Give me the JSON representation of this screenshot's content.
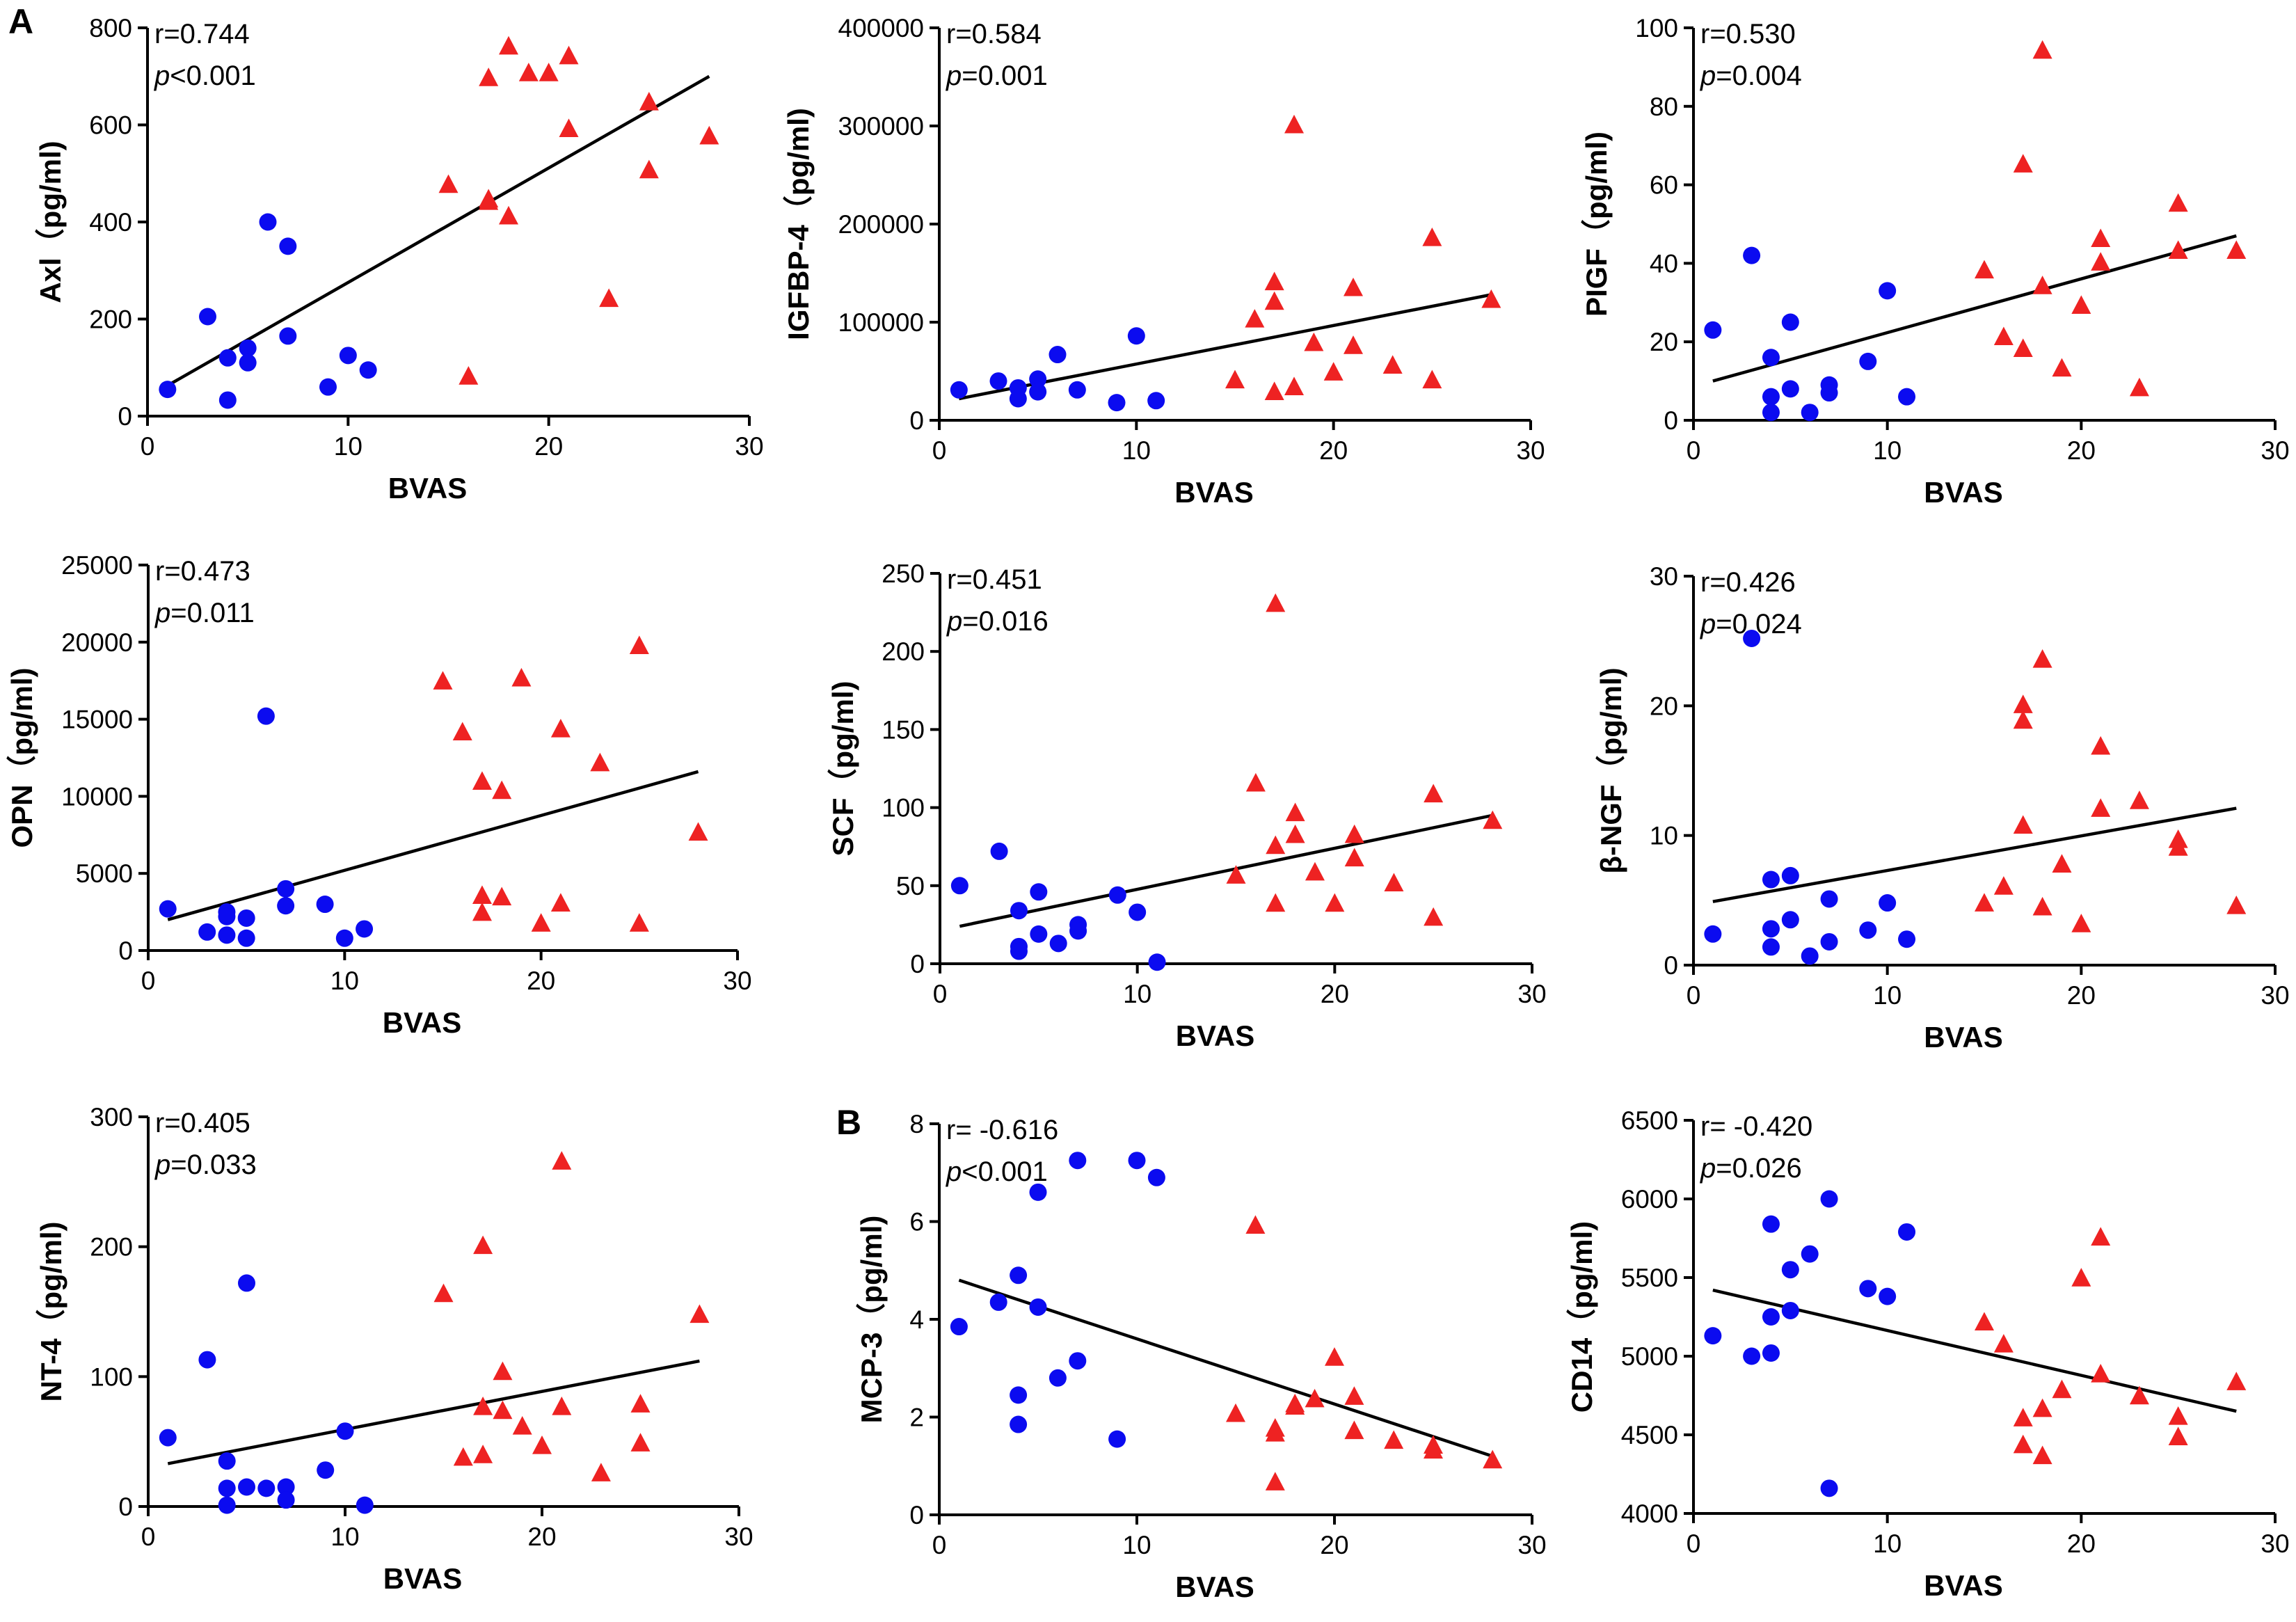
{
  "figure": {
    "panel_letters": [
      "A",
      "B"
    ]
  },
  "colors": {
    "group1": "#0b0bf0",
    "group2": "#ee2222",
    "group2_light": "#f05555",
    "axis": "#000000",
    "fit": "#000000"
  },
  "chart_data": [
    {
      "type": "scatter",
      "id": "axl",
      "panel_letter": "A",
      "xlabel": "BVAS",
      "ylabel": "Axl（pg/ml)",
      "xlim": [
        0,
        30
      ],
      "xticks": [
        0,
        10,
        20,
        30
      ],
      "ylim": [
        0,
        800
      ],
      "yticks": [
        0,
        200,
        400,
        600,
        800
      ],
      "ytick_labels": [
        "0",
        "200",
        "400",
        "600",
        "800"
      ],
      "stats": {
        "r": "r=0.744",
        "p_symbol": "p",
        "p_rest": "<0.001"
      },
      "fit": {
        "x": [
          1,
          28
        ],
        "y": [
          63,
          700
        ]
      },
      "series": [
        {
          "name": "group1",
          "marker": "circle",
          "x": [
            1,
            3,
            4,
            4,
            5,
            5,
            6,
            7,
            7,
            9,
            10,
            11
          ],
          "y": [
            55,
            205,
            120,
            33,
            140,
            110,
            400,
            350,
            165,
            60,
            125,
            95
          ]
        },
        {
          "name": "group2",
          "marker": "triangle",
          "x": [
            15,
            16,
            17,
            17,
            17,
            18,
            18,
            19,
            20,
            21,
            21,
            23,
            25,
            25,
            28
          ],
          "y": [
            475,
            80,
            695,
            445,
            440,
            410,
            760,
            705,
            705,
            740,
            590,
            240,
            645,
            505,
            575
          ]
        }
      ]
    },
    {
      "type": "scatter",
      "id": "igfbp4",
      "xlabel": "BVAS",
      "ylabel": "IGFBP-4（pg/ml)",
      "xlim": [
        0,
        30
      ],
      "xticks": [
        0,
        10,
        20,
        30
      ],
      "ylim": [
        0,
        400000
      ],
      "yticks": [
        0,
        100000,
        200000,
        300000,
        400000
      ],
      "ytick_labels": [
        "0",
        "100000",
        "200000",
        "300000",
        "400000"
      ],
      "stats": {
        "r": "r=0.584",
        "p_symbol": "p",
        "p_rest": "=0.001"
      },
      "fit": {
        "x": [
          1,
          28
        ],
        "y": [
          22000,
          128000
        ]
      },
      "series": [
        {
          "name": "group1",
          "marker": "circle",
          "x": [
            1,
            3,
            4,
            4,
            5,
            5,
            6,
            7,
            9,
            10,
            11
          ],
          "y": [
            31000,
            40000,
            33000,
            22000,
            42000,
            29000,
            67000,
            31000,
            18000,
            86000,
            20000
          ]
        },
        {
          "name": "group2",
          "marker": "triangle",
          "x": [
            15,
            16,
            17,
            17,
            17,
            18,
            18,
            19,
            20,
            21,
            21,
            23,
            25,
            25,
            28
          ],
          "y": [
            40000,
            102000,
            140000,
            120000,
            28000,
            300000,
            33000,
            78000,
            48000,
            134000,
            75000,
            55000,
            185000,
            40000,
            122000
          ]
        }
      ]
    },
    {
      "type": "scatter",
      "id": "plgf",
      "xlabel": "BVAS",
      "ylabel": "PIGF（pg/ml)",
      "xlim": [
        0,
        30
      ],
      "xticks": [
        0,
        10,
        20,
        30
      ],
      "ylim": [
        0,
        100
      ],
      "yticks": [
        0,
        20,
        40,
        60,
        80,
        100
      ],
      "ytick_labels": [
        "0",
        "20",
        "40",
        "60",
        "80",
        "100"
      ],
      "stats": {
        "r": "r=0.530",
        "p_symbol": "p",
        "p_rest": "=0.004"
      },
      "fit": {
        "x": [
          1,
          28
        ],
        "y": [
          10,
          47
        ]
      },
      "series": [
        {
          "name": "group1",
          "marker": "circle",
          "x": [
            1,
            3,
            4,
            4,
            4,
            5,
            5,
            6,
            7,
            7,
            9,
            10,
            11
          ],
          "y": [
            23,
            42,
            16,
            6,
            2,
            25,
            8,
            2,
            9,
            7,
            15,
            33,
            6
          ]
        },
        {
          "name": "group2",
          "marker": "triangle",
          "x": [
            15,
            16,
            17,
            17,
            18,
            18,
            19,
            20,
            21,
            21,
            23,
            25,
            25,
            28
          ],
          "y": [
            38,
            21,
            65,
            18,
            94,
            34,
            13,
            29,
            46,
            40,
            8,
            55,
            43,
            43
          ]
        }
      ]
    },
    {
      "type": "scatter",
      "id": "opn",
      "xlabel": "BVAS",
      "ylabel": "OPN（pg/ml)",
      "xlim": [
        0,
        30
      ],
      "xticks": [
        0,
        10,
        20,
        30
      ],
      "ylim": [
        0,
        25000
      ],
      "yticks": [
        0,
        5000,
        10000,
        15000,
        20000,
        25000
      ],
      "ytick_labels": [
        "0",
        "5000",
        "10000",
        "15000",
        "20000",
        "25000"
      ],
      "stats": {
        "r": "r=0.473",
        "p_symbol": "p",
        "p_rest": "=0.011"
      },
      "fit": {
        "x": [
          1,
          28
        ],
        "y": [
          2000,
          11600
        ]
      },
      "series": [
        {
          "name": "group1",
          "marker": "circle",
          "x": [
            1,
            3,
            4,
            4,
            4,
            5,
            5,
            6,
            7,
            7,
            9,
            10,
            11
          ],
          "y": [
            2700,
            1200,
            2500,
            2200,
            1000,
            2100,
            800,
            15200,
            4000,
            2900,
            3000,
            800,
            1400
          ]
        },
        {
          "name": "group2",
          "marker": "triangle",
          "x": [
            15,
            16,
            17,
            17,
            17,
            18,
            18,
            19,
            20,
            21,
            21,
            23,
            25,
            25,
            28
          ],
          "y": [
            17400,
            14100,
            10900,
            3500,
            2400,
            10300,
            3400,
            17600,
            1700,
            14300,
            3000,
            12100,
            19700,
            1700,
            7600
          ]
        }
      ]
    },
    {
      "type": "scatter",
      "id": "scf",
      "xlabel": "BVAS",
      "ylabel": "SCF（pg/ml)",
      "xlim": [
        0,
        30
      ],
      "xticks": [
        0,
        10,
        20,
        30
      ],
      "ylim": [
        0,
        250
      ],
      "yticks": [
        0,
        50,
        100,
        150,
        200,
        250
      ],
      "ytick_labels": [
        "0",
        "50",
        "100",
        "150",
        "200",
        "250"
      ],
      "stats": {
        "r": "r=0.451",
        "p_symbol": "p",
        "p_rest": "=0.016"
      },
      "fit": {
        "x": [
          1,
          28
        ],
        "y": [
          24,
          95
        ]
      },
      "series": [
        {
          "name": "group1",
          "marker": "circle",
          "x": [
            1,
            3,
            4,
            4,
            4,
            5,
            5,
            6,
            7,
            7,
            9,
            10,
            11
          ],
          "y": [
            50,
            72,
            34,
            11,
            8,
            46,
            19,
            13,
            25,
            21,
            44,
            33,
            1
          ]
        },
        {
          "name": "group2",
          "marker": "triangle",
          "x": [
            15,
            16,
            17,
            17,
            17,
            18,
            18,
            19,
            20,
            21,
            21,
            23,
            25,
            25,
            28
          ],
          "y": [
            56,
            115,
            230,
            75,
            38,
            96,
            82,
            58,
            38,
            82,
            67,
            51,
            108,
            29,
            91
          ]
        }
      ]
    },
    {
      "type": "scatter",
      "id": "bngf",
      "xlabel": "BVAS",
      "ylabel": "β-NGF（pg/ml)",
      "xlim": [
        0,
        30
      ],
      "xticks": [
        0,
        10,
        20,
        30
      ],
      "ylim": [
        0,
        30
      ],
      "yticks": [
        0,
        10,
        20,
        30
      ],
      "ytick_labels": [
        "0",
        "10",
        "20",
        "30"
      ],
      "stats": {
        "r": "r=0.426",
        "p_symbol": "p",
        "p_rest": "=0.024"
      },
      "fit": {
        "x": [
          1,
          28
        ],
        "y": [
          4.9,
          12.1
        ]
      },
      "series": [
        {
          "name": "group1",
          "marker": "circle",
          "x": [
            1,
            3,
            4,
            4,
            4,
            5,
            5,
            6,
            7,
            7,
            9,
            10,
            11
          ],
          "y": [
            2.4,
            25.2,
            6.6,
            2.8,
            1.4,
            3.5,
            6.9,
            0.7,
            5.1,
            1.8,
            2.7,
            4.8,
            2.0
          ]
        },
        {
          "name": "group2",
          "marker": "triangle",
          "x": [
            15,
            16,
            17,
            17,
            17,
            18,
            18,
            19,
            20,
            21,
            21,
            23,
            25,
            25,
            28
          ],
          "y": [
            4.7,
            6.0,
            20.0,
            18.8,
            10.7,
            23.5,
            4.4,
            7.7,
            3.1,
            16.8,
            12.0,
            12.6,
            9.6,
            9.0,
            4.5
          ]
        }
      ]
    },
    {
      "type": "scatter",
      "id": "nt4",
      "xlabel": "BVAS",
      "ylabel": "NT-4（pg/ml)",
      "xlim": [
        0,
        30
      ],
      "xticks": [
        0,
        10,
        20,
        30
      ],
      "ylim": [
        0,
        300
      ],
      "yticks": [
        0,
        100,
        200,
        300
      ],
      "ytick_labels": [
        "0",
        "100",
        "200",
        "300"
      ],
      "stats": {
        "r": "r=0.405",
        "p_symbol": "p",
        "p_rest": "=0.033"
      },
      "fit": {
        "x": [
          1,
          28
        ],
        "y": [
          33,
          112
        ]
      },
      "series": [
        {
          "name": "group1",
          "marker": "circle",
          "x": [
            1,
            3,
            4,
            4,
            4,
            5,
            5,
            6,
            7,
            7,
            9,
            10,
            11
          ],
          "y": [
            53,
            113,
            35,
            14,
            1,
            172,
            15,
            14,
            15,
            5,
            28,
            58,
            1
          ]
        },
        {
          "name": "group2",
          "marker": "triangle",
          "x": [
            15,
            16,
            17,
            17,
            17,
            18,
            18,
            19,
            20,
            21,
            21,
            23,
            25,
            25,
            28
          ],
          "y": [
            163,
            37,
            200,
            76,
            39,
            103,
            73,
            61,
            46,
            265,
            76,
            25,
            78,
            48,
            147
          ]
        }
      ]
    },
    {
      "type": "scatter",
      "id": "mcp3",
      "panel_letter": "B",
      "xlabel": "BVAS",
      "ylabel": "MCP-3（pg/ml)",
      "xlim": [
        0,
        30
      ],
      "xticks": [
        0,
        10,
        20,
        30
      ],
      "ylim": [
        0,
        8
      ],
      "yticks": [
        0,
        2,
        4,
        6,
        8
      ],
      "ytick_labels": [
        "0",
        "2",
        "4",
        "6",
        "8"
      ],
      "stats": {
        "r": "r= -0.616",
        "p_symbol": "p",
        "p_rest": "<0.001"
      },
      "fit": {
        "x": [
          1,
          28
        ],
        "y": [
          4.8,
          1.2
        ]
      },
      "series": [
        {
          "name": "group1",
          "marker": "circle",
          "x": [
            1,
            3,
            4,
            4,
            4,
            5,
            5,
            6,
            7,
            7,
            9,
            10,
            11
          ],
          "y": [
            3.85,
            4.35,
            4.9,
            2.45,
            1.85,
            6.6,
            4.25,
            2.8,
            7.25,
            3.15,
            1.55,
            7.25,
            6.9
          ]
        },
        {
          "name": "group2",
          "marker": "triangle",
          "x": [
            15,
            16,
            17,
            17,
            17,
            18,
            18,
            19,
            20,
            21,
            21,
            23,
            25,
            25,
            28
          ],
          "y": [
            2.05,
            5.9,
            1.75,
            1.65,
            0.65,
            2.25,
            2.2,
            2.35,
            3.2,
            2.4,
            1.7,
            1.5,
            1.4,
            1.3,
            1.1
          ]
        }
      ]
    },
    {
      "type": "scatter",
      "id": "cd14",
      "xlabel": "BVAS",
      "ylabel": "CD14（pg/ml)",
      "xlim": [
        0,
        30
      ],
      "xticks": [
        0,
        10,
        20,
        30
      ],
      "ylim": [
        4000,
        6500
      ],
      "yticks": [
        4000,
        4500,
        5000,
        5500,
        6000,
        6500
      ],
      "ytick_labels": [
        "4000",
        "4500",
        "5000",
        "5500",
        "6000",
        "6500"
      ],
      "stats": {
        "r": "r= -0.420",
        "p_symbol": "p",
        "p_rest": "=0.026"
      },
      "fit": {
        "x": [
          1,
          28
        ],
        "y": [
          5420,
          4650
        ]
      },
      "series": [
        {
          "name": "group1",
          "marker": "circle",
          "x": [
            1,
            3,
            4,
            4,
            4,
            5,
            5,
            6,
            7,
            7,
            9,
            10,
            11
          ],
          "y": [
            5130,
            5000,
            5840,
            5250,
            5020,
            5550,
            5290,
            5650,
            6000,
            4160,
            5430,
            5380,
            5790
          ]
        },
        {
          "name": "group2",
          "marker": "triangle",
          "x": [
            15,
            16,
            17,
            17,
            18,
            18,
            19,
            20,
            21,
            21,
            23,
            25,
            25,
            28
          ],
          "y": [
            5210,
            5070,
            4600,
            4430,
            4660,
            4360,
            4780,
            5490,
            5750,
            4880,
            4740,
            4610,
            4480,
            4830
          ]
        }
      ]
    }
  ]
}
